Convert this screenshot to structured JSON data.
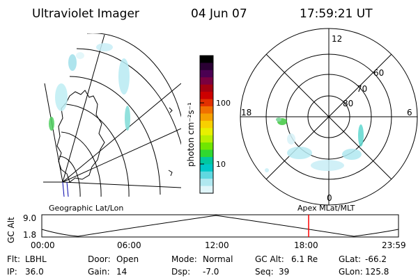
{
  "header": {
    "instrument": "Ultraviolet Imager",
    "date": "04 Jun 07",
    "time": "17:59:21 UT"
  },
  "geo_panel": {
    "label": "Geographic Lat/Lon"
  },
  "colorbar": {
    "unit_label": "photon cm⁻²s⁻¹",
    "ticks": [
      "100",
      "10"
    ],
    "colors": [
      "#000000",
      "#2a0033",
      "#4b0052",
      "#7a0040",
      "#a40010",
      "#cc0000",
      "#e23000",
      "#f07000",
      "#f5a000",
      "#f8d000",
      "#e8f000",
      "#b8ef00",
      "#70e600",
      "#30d830",
      "#00c8a0",
      "#00c8c8",
      "#60d8e0",
      "#b0e8f0",
      "#e0f6fa"
    ]
  },
  "polar_panel": {
    "label": "Apex  MLat/MLT",
    "mlt_labels": [
      "12",
      "18",
      "6",
      "0"
    ],
    "lat_labels": [
      "60",
      "70",
      "80"
    ]
  },
  "timeline": {
    "axis_label": "GC Alt",
    "y_ticks": [
      "9.0",
      "1.8"
    ],
    "x_ticks": [
      "00:00",
      "06:00",
      "12:00",
      "18:00",
      "23:59"
    ],
    "marker_time": "17:59",
    "marker_color": "#ff0000"
  },
  "status": {
    "flt_label": "Flt:",
    "flt_value": "LBHL",
    "ip_label": "IP:",
    "ip_value": "36.0",
    "door_label": "Door:",
    "door_value": "Open",
    "gain_label": "Gain:",
    "gain_value": "14",
    "mode_label": "Mode:",
    "mode_value": "Normal",
    "dsp_label": "Dsp:",
    "dsp_value": "-7.0",
    "gcalt_label": "GC Alt:",
    "gcalt_value": "6.1 Re",
    "seq_label": "Seq:",
    "seq_value": "39",
    "glat_label": "GLat:",
    "glat_value": "-66.2",
    "glon_label": "GLon:",
    "glon_value": "125.8"
  }
}
